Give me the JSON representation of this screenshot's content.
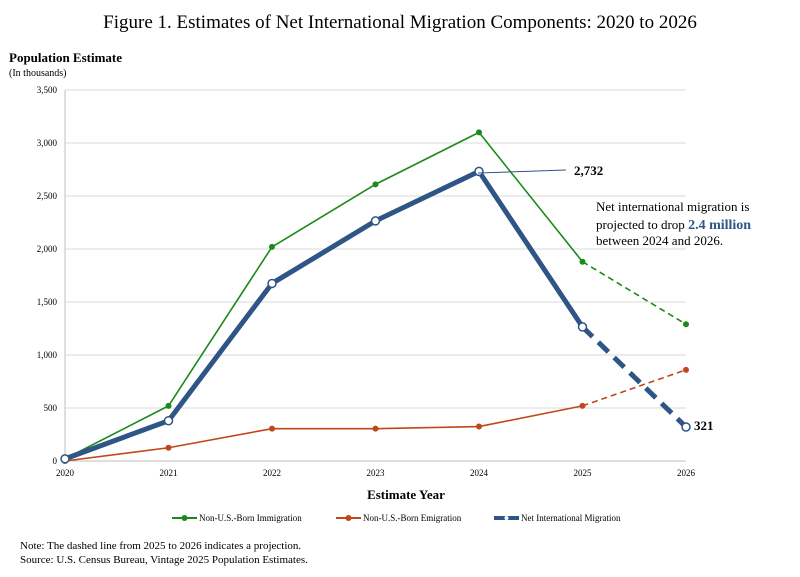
{
  "chart_data": {
    "type": "line",
    "title": "Figure 1. Estimates of Net International Migration Components: 2020 to 2026",
    "ylabel": "Population Estimate",
    "ylabel_sub": "(In thousands)",
    "xlabel": "Estimate Year",
    "ylim": [
      0,
      3500
    ],
    "yticks": [
      "0",
      "500",
      "1,000",
      "1,500",
      "2,000",
      "2,500",
      "3,000",
      "3,500"
    ],
    "ytick_values": [
      0,
      500,
      1000,
      1500,
      2000,
      2500,
      3000,
      3500
    ],
    "categories": [
      "2020",
      "2021",
      "2022",
      "2023",
      "2024",
      "2025",
      "2026"
    ],
    "grid": true,
    "legend_position": "bottom",
    "projection_from": "2025",
    "series": [
      {
        "name": "Non-U.S.-Born Immigration",
        "color": "#1a8a1a",
        "values": [
          20,
          520,
          2020,
          2610,
          3100,
          1880,
          1290
        ]
      },
      {
        "name": "Non-U.S.-Born Emigration",
        "color": "#c0461c",
        "values": [
          0,
          125,
          305,
          305,
          325,
          520,
          860
        ]
      },
      {
        "name": "Net International Migration",
        "color": "#2e5585",
        "values": [
          20,
          380,
          1675,
          2265,
          2732,
          1265,
          321
        ]
      }
    ],
    "annotations": {
      "peak_label": "2,732",
      "end_label": "321",
      "callout_line1": "Net international migration is",
      "callout_line2_pre": "projected to drop ",
      "callout_highlight": "2.4 million",
      "callout_line3": "between 2024 and 2026."
    }
  },
  "notes": {
    "note": "Note: The dashed line from 2025 to 2026 indicates a projection.",
    "source": "Source: U.S. Census Bureau, Vintage 2025 Population Estimates."
  }
}
